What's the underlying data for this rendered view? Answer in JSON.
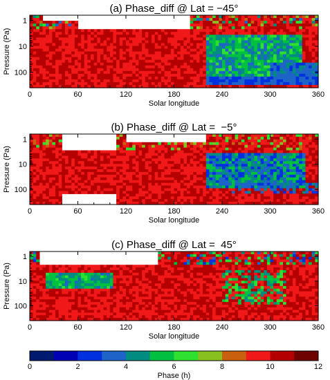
{
  "chart_data": {
    "type": "heatmap",
    "panels": [
      {
        "title": "(a) Phase_diff @ Lat = −45°",
        "xlabel": "Solar longitude",
        "ylabel": "Pressure (Pa)",
        "xlim": [
          0,
          360
        ],
        "ylim_log10": [
          2.6,
          -0.2
        ],
        "xticks": [
          "0",
          "60",
          "120",
          "180",
          "240",
          "300",
          "360"
        ],
        "yticks": [
          "1",
          "10",
          "100"
        ],
        "y_scale": "log",
        "dominant_phase": "red (9–11 h) from Ls 0–220 at 10–100 Pa; green/blue (4–7 h) region Ls 220–340 near 10–100 Pa",
        "gap_ls": 100
      },
      {
        "title": "(b) Phase_diff @ Lat =  −5°",
        "xlabel": "Solar longitude",
        "ylabel": "Pressure (Pa)",
        "xlim": [
          0,
          360
        ],
        "ylim_log10": [
          2.6,
          -0.2
        ],
        "xticks": [
          "0",
          "60",
          "120",
          "180",
          "240",
          "300",
          "360"
        ],
        "yticks": [
          "1",
          "10",
          "100"
        ],
        "y_scale": "log",
        "dominant_phase": "red (9–11 h) at Ls 0–220; mixed blue/green (3–7 h) at Ls 220–340 near 10–100 Pa",
        "gap_ls": 100
      },
      {
        "title": "(c) Phase_diff @ Lat =  45°",
        "xlabel": "Solar longitude",
        "ylabel": "Pressure (Pa)",
        "xlim": [
          0,
          360
        ],
        "ylim_log10": [
          2.6,
          -0.2
        ],
        "xticks": [
          "0",
          "60",
          "120",
          "180",
          "240",
          "300",
          "360"
        ],
        "yticks": [
          "1",
          "10",
          "100"
        ],
        "y_scale": "log",
        "dominant_phase": "red (9–11 h) broadly; green/blue band near 10 Pa at Ls 20–100; blue/green patches at Ls 240–320",
        "gap_ls": 100
      }
    ],
    "colorbar": {
      "label": "Phase (h)",
      "range": [
        0,
        12
      ],
      "ticks": [
        "0",
        "2",
        "4",
        "6",
        "8",
        "10",
        "12"
      ],
      "colors": [
        "#001a70",
        "#0000b4",
        "#0030e0",
        "#1e64c8",
        "#008c80",
        "#00c040",
        "#30e030",
        "#88c020",
        "#c86010",
        "#f01818",
        "#b40000",
        "#6e0000"
      ]
    }
  }
}
